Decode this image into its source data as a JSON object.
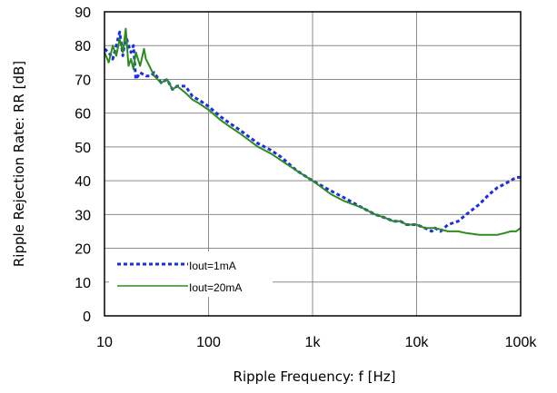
{
  "chart_data": {
    "type": "line",
    "xlabel": "Ripple Frequency: f [Hz]",
    "ylabel": "Ripple Rejection Rate: RR [dB]",
    "x_scale": "log",
    "xlim": [
      10,
      100000
    ],
    "ylim": [
      0,
      90
    ],
    "x_ticks": [
      {
        "value": 10,
        "label": "10"
      },
      {
        "value": 100,
        "label": "100"
      },
      {
        "value": 1000,
        "label": "1k"
      },
      {
        "value": 10000,
        "label": "10k"
      },
      {
        "value": 100000,
        "label": "100k"
      }
    ],
    "y_ticks": [
      {
        "value": 0,
        "label": "0"
      },
      {
        "value": 10,
        "label": "10"
      },
      {
        "value": 20,
        "label": "20"
      },
      {
        "value": 30,
        "label": "30"
      },
      {
        "value": 40,
        "label": "40"
      },
      {
        "value": 50,
        "label": "50"
      },
      {
        "value": 60,
        "label": "60"
      },
      {
        "value": 70,
        "label": "70"
      },
      {
        "value": 80,
        "label": "80"
      },
      {
        "value": 90,
        "label": "90"
      }
    ],
    "grid": true,
    "legend_position": "bottom-left",
    "series": [
      {
        "name": "Iout=1mA",
        "color": "#1a2fe0",
        "style": "dotted",
        "x": [
          10,
          11,
          12,
          13,
          14,
          15,
          16,
          17,
          18,
          19,
          20,
          22,
          25,
          28,
          30,
          35,
          40,
          45,
          50,
          60,
          70,
          80,
          100,
          130,
          160,
          200,
          300,
          400,
          500,
          700,
          1000,
          1500,
          2000,
          3000,
          4000,
          5000,
          6000,
          7000,
          8000,
          10000,
          12000,
          14000,
          15000,
          17000,
          20000,
          25000,
          30000,
          40000,
          50000,
          60000,
          70000,
          80000,
          90000,
          100000
        ],
        "y": [
          79,
          78,
          76,
          80,
          84,
          77,
          83,
          80,
          78,
          80,
          70,
          72,
          71,
          71,
          72,
          69,
          70,
          67,
          68,
          68,
          65,
          64,
          62,
          59,
          57,
          55,
          51,
          49,
          47,
          43,
          40,
          37,
          35,
          32,
          30,
          29,
          28,
          28,
          27,
          27,
          26,
          25,
          26,
          25,
          27,
          28,
          30,
          33,
          36,
          38,
          39,
          40,
          41,
          41
        ]
      },
      {
        "name": "Iout=20mA",
        "color": "#2e8b1f",
        "style": "solid",
        "x": [
          10,
          11,
          12,
          13,
          14,
          15,
          16,
          17,
          18,
          19,
          20,
          22,
          24,
          25,
          28,
          30,
          35,
          40,
          45,
          50,
          60,
          70,
          80,
          100,
          130,
          160,
          200,
          300,
          400,
          500,
          700,
          1000,
          1500,
          2000,
          3000,
          4000,
          5000,
          6000,
          7000,
          8000,
          10000,
          12000,
          15000,
          20000,
          25000,
          30000,
          40000,
          50000,
          60000,
          70000,
          80000,
          90000,
          100000
        ],
        "y": [
          78,
          75,
          80,
          77,
          82,
          78,
          85,
          74,
          76,
          73,
          78,
          74,
          79,
          76,
          73,
          71,
          69,
          70,
          67,
          68,
          66,
          64,
          63,
          61,
          58,
          56,
          54,
          50,
          48,
          46,
          43,
          40,
          36,
          34,
          32,
          30,
          29,
          28,
          28,
          27,
          27,
          26,
          26,
          25,
          25,
          24.5,
          24,
          24,
          24,
          24.5,
          25,
          25,
          26
        ]
      }
    ]
  }
}
